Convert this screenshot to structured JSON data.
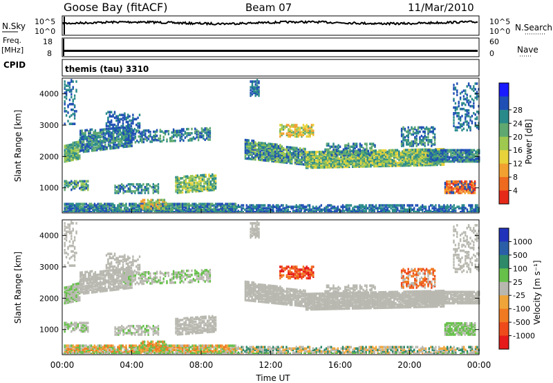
{
  "header": {
    "site": "Goose Bay (fitACF)",
    "beam": "Beam 07",
    "date": "11/Mar/2010"
  },
  "left_labels": {
    "nsky": "N.Sky",
    "freq": "Freq.",
    "freq_unit": "[MHz]",
    "cpid": "CPID"
  },
  "right_labels": {
    "nsearch": "N.Search",
    "nave": "Nave"
  },
  "cpid_text": "themis (tau) 3310",
  "chart_data": [
    {
      "type": "line",
      "name": "noise",
      "yticks_left": [
        "10^5",
        "10^0"
      ],
      "yticks_right": [
        "10^5",
        "10^0"
      ]
    },
    {
      "type": "line",
      "name": "frequency",
      "yticks_left": [
        "18",
        "8"
      ],
      "yticks_right": [
        "60",
        "0"
      ]
    },
    {
      "type": "heatmap",
      "name": "power",
      "ylabel": "Slant Range [km]",
      "ylim": [
        200,
        4500
      ],
      "yticks": [
        1000,
        2000,
        3000,
        4000
      ],
      "colorbar": {
        "label": "Power [dB]",
        "ticks": [
          "4",
          "8",
          "12",
          "16",
          "20",
          "24",
          "28"
        ],
        "colors": [
          "#1a1aff",
          "#1f4fb4",
          "#2a8a8a",
          "#5fa870",
          "#9ec850",
          "#e8d33a",
          "#f2a130",
          "#ee6a1f",
          "#e62a1a"
        ]
      }
    },
    {
      "type": "heatmap",
      "name": "velocity",
      "ylabel": "Slant Range [km]",
      "xlabel": "Time UT",
      "xticks": [
        "00:00",
        "04:00",
        "08:00",
        "12:00",
        "16:00",
        "20:00",
        "00:00"
      ],
      "ylim": [
        200,
        4500
      ],
      "yticks": [
        1000,
        2000,
        3000,
        4000
      ],
      "colorbar": {
        "label": "Velocity [m s⁻¹]",
        "ticks": [
          "1000",
          "500",
          "100",
          "25",
          "-25",
          "-100",
          "-500",
          "-1000"
        ],
        "colors": [
          "#2233bb",
          "#2a5fa8",
          "#2f8a6a",
          "#66c04a",
          "#b8b8b0",
          "#f0a53a",
          "#f07a22",
          "#ee4a1a",
          "#e61a1a"
        ]
      }
    }
  ]
}
